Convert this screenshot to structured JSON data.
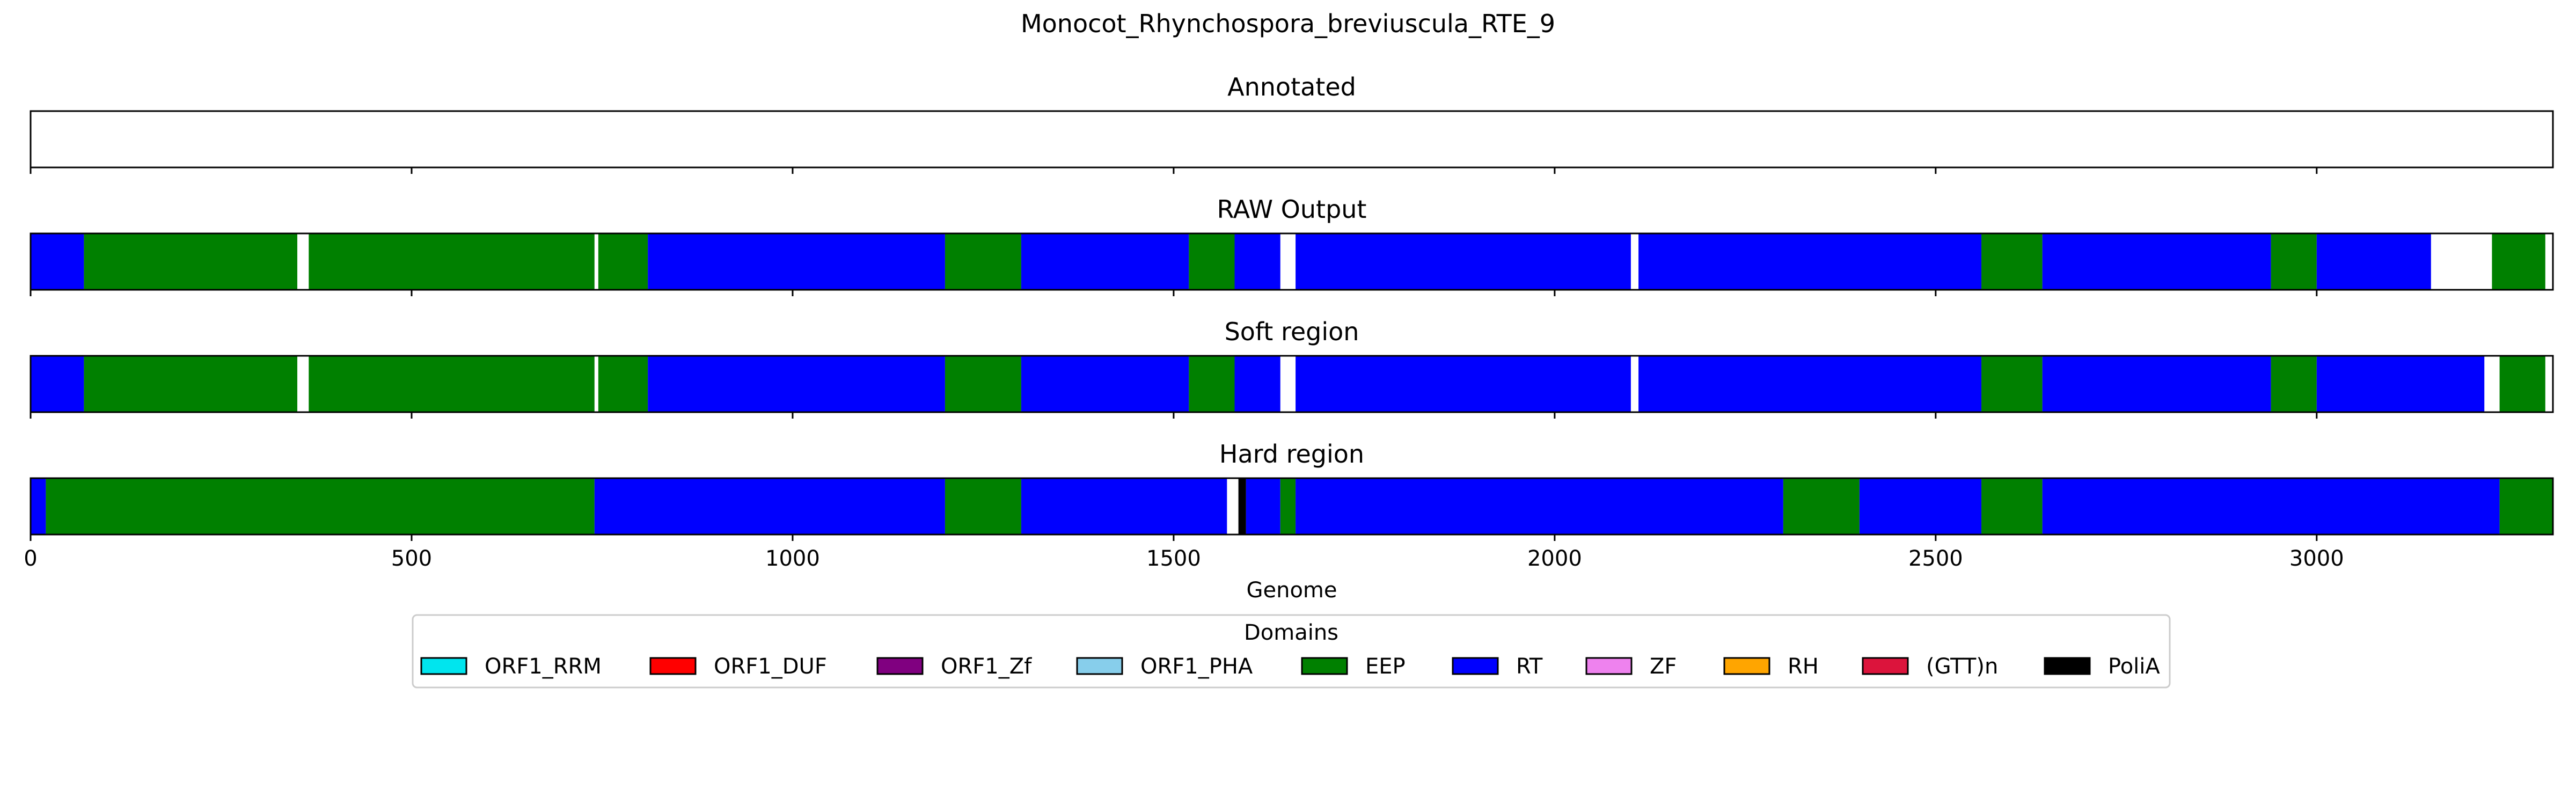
{
  "figure": {
    "suptitle": "Monocot_Rhynchospora_breviuscula_RTE_9",
    "xlabel": "Genome"
  },
  "colors": {
    "ORF1_RRM": "#00e5ee",
    "ORF1_DUF": "#ff0000",
    "ORF1_Zf": "#800080",
    "ORF1_PHA": "#87ceeb",
    "EEP": "#008000",
    "RT": "#0000ff",
    "ZF": "#ee82ee",
    "RH": "#ffa500",
    "(GTT)n": "#dc143c",
    "PoliA": "#000000"
  },
  "legend": {
    "title": "Domains",
    "placement": "lower-center",
    "entries": [
      "ORF1_RRM",
      "ORF1_DUF",
      "ORF1_Zf",
      "ORF1_PHA",
      "EEP",
      "RT",
      "ZF",
      "RH",
      "(GTT)n",
      "PoliA"
    ]
  },
  "chart_data": [
    {
      "type": "track",
      "title": "Annotated",
      "xlim": [
        0,
        3310
      ],
      "xticks": [
        0,
        500,
        1000,
        1500,
        2000,
        2500,
        3000
      ],
      "segments": []
    },
    {
      "type": "track",
      "title": "RAW Output",
      "xlim": [
        0,
        3310
      ],
      "xticks": [
        0,
        500,
        1000,
        1500,
        2000,
        2500,
        3000
      ],
      "segments": [
        {
          "domain": "RT",
          "start": 0,
          "end": 70
        },
        {
          "domain": "EEP",
          "start": 70,
          "end": 350
        },
        {
          "domain": "EEP",
          "start": 365,
          "end": 740
        },
        {
          "domain": "EEP",
          "start": 745,
          "end": 810
        },
        {
          "domain": "RT",
          "start": 810,
          "end": 1200
        },
        {
          "domain": "EEP",
          "start": 1200,
          "end": 1300
        },
        {
          "domain": "RT",
          "start": 1300,
          "end": 1520
        },
        {
          "domain": "EEP",
          "start": 1520,
          "end": 1580
        },
        {
          "domain": "RT",
          "start": 1580,
          "end": 1640
        },
        {
          "domain": "RT",
          "start": 1660,
          "end": 2100
        },
        {
          "domain": "RT",
          "start": 2110,
          "end": 2560
        },
        {
          "domain": "EEP",
          "start": 2560,
          "end": 2640
        },
        {
          "domain": "RT",
          "start": 2640,
          "end": 2940
        },
        {
          "domain": "EEP",
          "start": 2940,
          "end": 3000
        },
        {
          "domain": "RT",
          "start": 3000,
          "end": 3150
        },
        {
          "domain": "EEP",
          "start": 3230,
          "end": 3300
        }
      ]
    },
    {
      "type": "track",
      "title": "Soft region",
      "xlim": [
        0,
        3310
      ],
      "xticks": [
        0,
        500,
        1000,
        1500,
        2000,
        2500,
        3000
      ],
      "segments": [
        {
          "domain": "RT",
          "start": 0,
          "end": 70
        },
        {
          "domain": "EEP",
          "start": 70,
          "end": 350
        },
        {
          "domain": "EEP",
          "start": 365,
          "end": 740
        },
        {
          "domain": "EEP",
          "start": 745,
          "end": 810
        },
        {
          "domain": "RT",
          "start": 810,
          "end": 1200
        },
        {
          "domain": "EEP",
          "start": 1200,
          "end": 1300
        },
        {
          "domain": "RT",
          "start": 1300,
          "end": 1520
        },
        {
          "domain": "EEP",
          "start": 1520,
          "end": 1580
        },
        {
          "domain": "RT",
          "start": 1580,
          "end": 1640
        },
        {
          "domain": "RT",
          "start": 1660,
          "end": 2100
        },
        {
          "domain": "RT",
          "start": 2110,
          "end": 2560
        },
        {
          "domain": "EEP",
          "start": 2560,
          "end": 2640
        },
        {
          "domain": "RT",
          "start": 2640,
          "end": 2940
        },
        {
          "domain": "EEP",
          "start": 2940,
          "end": 3000
        },
        {
          "domain": "RT",
          "start": 3000,
          "end": 3220
        },
        {
          "domain": "EEP",
          "start": 3240,
          "end": 3300
        }
      ]
    },
    {
      "type": "track",
      "title": "Hard region",
      "xlim": [
        0,
        3310
      ],
      "xticks": [
        0,
        500,
        1000,
        1500,
        2000,
        2500,
        3000
      ],
      "tick_labels": [
        "0",
        "500",
        "1000",
        "1500",
        "2000",
        "2500",
        "3000"
      ],
      "segments": [
        {
          "domain": "RT",
          "start": 0,
          "end": 20
        },
        {
          "domain": "EEP",
          "start": 20,
          "end": 740
        },
        {
          "domain": "RT",
          "start": 740,
          "end": 1200
        },
        {
          "domain": "EEP",
          "start": 1200,
          "end": 1300
        },
        {
          "domain": "RT",
          "start": 1300,
          "end": 1570
        },
        {
          "domain": "PoliA",
          "start": 1585,
          "end": 1595
        },
        {
          "domain": "RT",
          "start": 1595,
          "end": 1640
        },
        {
          "domain": "EEP",
          "start": 1640,
          "end": 1660
        },
        {
          "domain": "RT",
          "start": 1660,
          "end": 2300
        },
        {
          "domain": "EEP",
          "start": 2300,
          "end": 2400
        },
        {
          "domain": "RT",
          "start": 2400,
          "end": 2560
        },
        {
          "domain": "EEP",
          "start": 2560,
          "end": 2640
        },
        {
          "domain": "RT",
          "start": 2640,
          "end": 3240
        },
        {
          "domain": "EEP",
          "start": 3240,
          "end": 3310
        }
      ]
    }
  ]
}
